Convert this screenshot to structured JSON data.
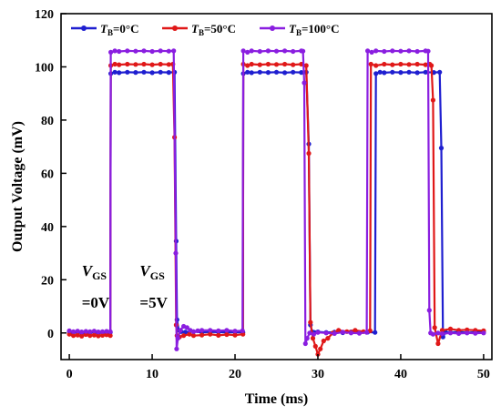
{
  "chart_data": {
    "type": "line",
    "xlabel": "Time (ms)",
    "ylabel": "Output Voltage (mV)",
    "xlim": [
      -1,
      51
    ],
    "ylim": [
      -10,
      120
    ],
    "xticks": [
      0,
      10,
      20,
      30,
      40,
      50
    ],
    "yticks": [
      0,
      20,
      40,
      60,
      80,
      100,
      120
    ],
    "grid": false,
    "legend_position": "top",
    "series": [
      {
        "name": "T_B=0°C",
        "label_main": "T",
        "label_sub": "B",
        "label_rest": "=0°C",
        "color": "#1f1fd0",
        "marker_color": "#1f1fd0",
        "x": [
          0,
          0.5,
          1.0,
          1.5,
          2.0,
          2.5,
          3.0,
          3.5,
          4.0,
          4.5,
          4.95,
          5.0,
          5.5,
          6.0,
          7.0,
          8.0,
          9.0,
          10.0,
          11.0,
          12.0,
          12.7,
          12.9,
          13.0,
          13.2,
          13.5,
          14.0,
          15.0,
          16.0,
          17.0,
          18.0,
          19.0,
          20.0,
          20.95,
          21.0,
          21.5,
          22.0,
          23.0,
          24.0,
          25.0,
          26.0,
          27.0,
          28.0,
          28.6,
          28.9,
          29.1,
          29.3,
          29.6,
          30.0,
          31.0,
          32.0,
          33.0,
          34.0,
          35.0,
          36.0,
          36.9,
          37.0,
          37.5,
          38.0,
          39.0,
          40.0,
          41.0,
          42.0,
          43.0,
          44.0,
          44.7,
          44.9,
          45.1,
          45.4,
          46.0,
          47.0,
          48.0,
          49.0,
          50.0
        ],
        "y": [
          0.5,
          0.2,
          0.4,
          0.1,
          0.3,
          0.2,
          0.4,
          0.1,
          0.2,
          0.3,
          0.2,
          97.5,
          98,
          97.8,
          98,
          97.9,
          98,
          97.8,
          98,
          97.9,
          98,
          34.5,
          5,
          1,
          0.5,
          0.3,
          0.5,
          0.2,
          0.4,
          0.3,
          0.2,
          0.3,
          0.2,
          97.5,
          98,
          97.8,
          98,
          97.9,
          98,
          97.8,
          98,
          97.9,
          98,
          71,
          3,
          0.5,
          0.2,
          0.4,
          0.2,
          0.3,
          0.1,
          0.4,
          0.2,
          0.3,
          0.2,
          97.5,
          98,
          97.8,
          98,
          97.9,
          98,
          97.8,
          98,
          97.9,
          98,
          69.5,
          -1.5,
          0.3,
          0.2,
          0.4,
          0.1,
          0.3,
          0.2
        ]
      },
      {
        "name": "T_B=50°C",
        "label_main": "T",
        "label_sub": "B",
        "label_rest": "=50°C",
        "color": "#e01818",
        "marker_color": "#e01818",
        "x": [
          0,
          0.5,
          1.0,
          1.5,
          2.0,
          2.5,
          3.0,
          3.5,
          4.0,
          4.5,
          4.95,
          5.0,
          5.5,
          6.0,
          7.0,
          8.0,
          9.0,
          10.0,
          11.0,
          12.0,
          12.5,
          12.7,
          12.9,
          13.0,
          13.3,
          13.8,
          14.5,
          15.0,
          16.0,
          17.0,
          18.0,
          19.0,
          20.0,
          20.95,
          21.0,
          21.5,
          22.0,
          23.0,
          24.0,
          25.0,
          26.0,
          27.0,
          28.0,
          28.6,
          28.9,
          29.1,
          29.4,
          29.7,
          30.0,
          30.3,
          30.7,
          31.2,
          31.8,
          32.5,
          33.5,
          34.5,
          35.5,
          36.3,
          36.4,
          37.0,
          38.0,
          39.0,
          40.0,
          41.0,
          42.0,
          43.0,
          43.5,
          43.7,
          43.9,
          44.1,
          44.5,
          45.0,
          46.0,
          47.0,
          48.0,
          49.0,
          50.0
        ],
        "y": [
          -0.5,
          -1,
          -0.8,
          -1.2,
          -0.6,
          -1,
          -0.8,
          -1.1,
          -0.9,
          -0.7,
          -1,
          100.5,
          101,
          100.8,
          101,
          100.9,
          101,
          100.8,
          101,
          100.9,
          101,
          73.5,
          3,
          -1,
          -1.5,
          -1,
          -0.5,
          -1,
          -0.8,
          -0.5,
          -0.9,
          -0.6,
          -0.8,
          -0.5,
          101,
          100.5,
          101,
          100.8,
          101,
          100.9,
          101,
          100.8,
          101,
          100.5,
          67.5,
          4,
          -2,
          -5,
          -8,
          -6,
          -3,
          -2,
          0,
          1,
          0.5,
          1,
          0.5,
          0.8,
          101,
          100.5,
          101,
          100.8,
          101,
          100.9,
          101,
          100.8,
          101,
          100.5,
          87.5,
          2,
          -4,
          1,
          1.5,
          1,
          1.2,
          1,
          0.8
        ]
      },
      {
        "name": "T_B=100°C",
        "label_main": "T",
        "label_sub": "B",
        "label_rest": "=100°C",
        "color": "#8a1ee0",
        "marker_color": "#8a1ee0",
        "x": [
          0,
          0.5,
          1.0,
          1.5,
          2.0,
          2.5,
          3.0,
          3.5,
          4.0,
          4.5,
          4.95,
          5.0,
          5.5,
          6.0,
          7.0,
          8.0,
          9.0,
          10.0,
          11.0,
          12.0,
          12.6,
          12.85,
          12.95,
          13.1,
          13.4,
          13.8,
          14.2,
          14.6,
          15.0,
          15.5,
          16.0,
          17.0,
          18.0,
          19.0,
          20.0,
          20.9,
          21.0,
          21.5,
          22.0,
          23.0,
          24.0,
          25.0,
          26.0,
          27.0,
          28.0,
          28.2,
          28.35,
          28.5,
          28.7,
          29.0,
          29.5,
          30.0,
          31.0,
          32.0,
          33.0,
          34.0,
          35.0,
          35.9,
          36.0,
          36.5,
          37.0,
          38.0,
          39.0,
          40.0,
          41.0,
          42.0,
          43.0,
          43.3,
          43.45,
          43.6,
          43.9,
          44.5,
          45.0,
          46.0,
          47.0,
          48.0,
          49.0,
          50.0
        ],
        "y": [
          0.8,
          0.5,
          0.7,
          0.4,
          0.6,
          0.5,
          0.7,
          0.4,
          0.5,
          0.6,
          0.5,
          105.5,
          106,
          105.8,
          106,
          105.9,
          106,
          105.8,
          106,
          105.9,
          106,
          30,
          -6,
          -2,
          1,
          2.5,
          2,
          1,
          0.5,
          0.8,
          1,
          1,
          0.8,
          1,
          0.7,
          0.8,
          106,
          105.5,
          106,
          105.8,
          106,
          105.9,
          106,
          105.8,
          106,
          105.9,
          94,
          -4,
          -2,
          0,
          -0.5,
          0.2,
          0,
          -0.2,
          0.3,
          0,
          -0.1,
          0.2,
          106,
          105.5,
          106,
          105.8,
          106,
          105.9,
          106,
          105.8,
          106,
          105.9,
          8.5,
          0,
          -0.5,
          0,
          -0.3,
          0,
          -0.2,
          0,
          -0.1,
          0
        ]
      }
    ],
    "annotations": [
      {
        "id": "vgs-0",
        "main": "V",
        "sub": "GS",
        "line2": "=0V",
        "x": 1.5,
        "y": 21.5
      },
      {
        "id": "vgs-5",
        "main": "V",
        "sub": "GS",
        "line2": "=5V",
        "x": 8.5,
        "y": 21.5
      }
    ]
  }
}
